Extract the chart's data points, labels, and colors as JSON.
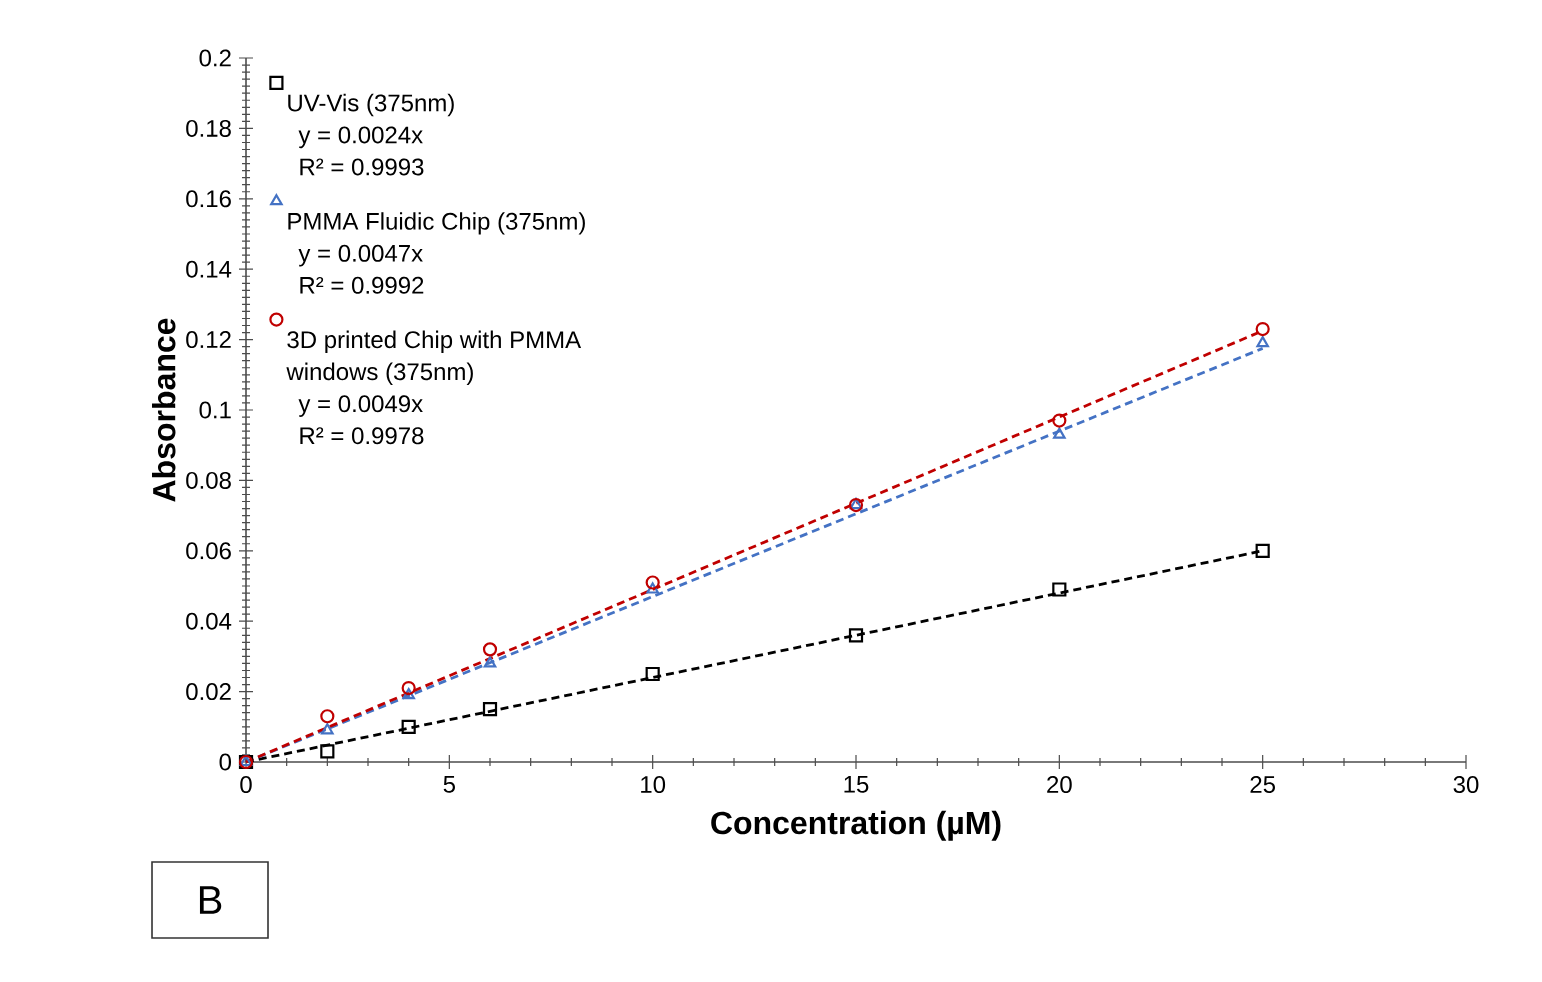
{
  "chart_data": {
    "type": "scatter",
    "xlabel": "Concentration (µM)",
    "ylabel": "Absorbance",
    "xlim": [
      0,
      30
    ],
    "xticks": [
      0,
      5,
      10,
      15,
      20,
      25,
      30
    ],
    "ylim": [
      0,
      0.2
    ],
    "yticks": [
      0,
      0.02,
      0.04,
      0.06,
      0.08,
      0.1,
      0.12,
      0.14,
      0.16,
      0.18,
      0.2
    ],
    "grid": false,
    "legend": "top left",
    "annotations": [
      "y = 0.0024x",
      "R² = 0.9993",
      "y = 0.0047x",
      "R² = 0.9992",
      "y = 0.0049x",
      "R² = 0.9978",
      "B"
    ],
    "series": [
      {
        "name": "UV-Vis (375nm)",
        "marker": "square",
        "color": "#000000",
        "x": [
          0,
          2,
          4,
          6,
          10,
          15,
          20,
          25
        ],
        "values": [
          0,
          0.003,
          0.01,
          0.015,
          0.025,
          0.036,
          0.049,
          0.06
        ]
      },
      {
        "name": "PMMA Fluidic Chip (375nm)",
        "marker": "triangle",
        "color": "#4472c4",
        "x": [
          0,
          2,
          4,
          6,
          10,
          15,
          20,
          25
        ],
        "values": [
          0,
          0.009,
          0.019,
          0.028,
          0.049,
          0.073,
          0.093,
          0.119
        ]
      },
      {
        "name": "3D printed Chip with PMMA windows (375nm)",
        "marker": "circle",
        "color": "#c00000",
        "x": [
          0,
          2,
          4,
          6,
          10,
          15,
          20,
          25
        ],
        "values": [
          0,
          0.013,
          0.021,
          0.032,
          0.051,
          0.073,
          0.097,
          0.123
        ]
      },
      {
        "type": "line",
        "line_style": "dashed",
        "marker": "none",
        "color": "#000000",
        "x": [
          0,
          25
        ],
        "values": [
          0,
          0.06
        ]
      },
      {
        "type": "line",
        "line_style": "dashed",
        "marker": "none",
        "color": "#4472c4",
        "x": [
          0,
          25
        ],
        "values": [
          0,
          0.1175
        ]
      },
      {
        "type": "line",
        "line_style": "dashed",
        "marker": "none",
        "color": "#c00000",
        "x": [
          0,
          25
        ],
        "values": [
          0,
          0.1225
        ]
      }
    ]
  }
}
